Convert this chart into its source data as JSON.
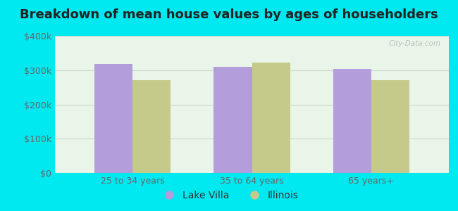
{
  "title": "Breakdown of mean house values by ages of householders",
  "categories": [
    "25 to 34 years",
    "35 to 64 years",
    "65 years+"
  ],
  "lake_villa": [
    318000,
    310000,
    303000
  ],
  "illinois": [
    270000,
    323000,
    270000
  ],
  "lake_villa_color": "#b39ddb",
  "illinois_color": "#c5c98a",
  "bar_width": 0.32,
  "ylim": [
    0,
    400000
  ],
  "yticks": [
    0,
    100000,
    200000,
    300000,
    400000
  ],
  "ytick_labels": [
    "$0",
    "$100k",
    "$200k",
    "$300k",
    "$400k"
  ],
  "background_outer": "#00e8f0",
  "background_inner": "#eaf5ea",
  "grid_color": "#c8d8c8",
  "legend_labels": [
    "Lake Villa",
    "Illinois"
  ],
  "title_fontsize": 13,
  "tick_fontsize": 9,
  "legend_fontsize": 10
}
